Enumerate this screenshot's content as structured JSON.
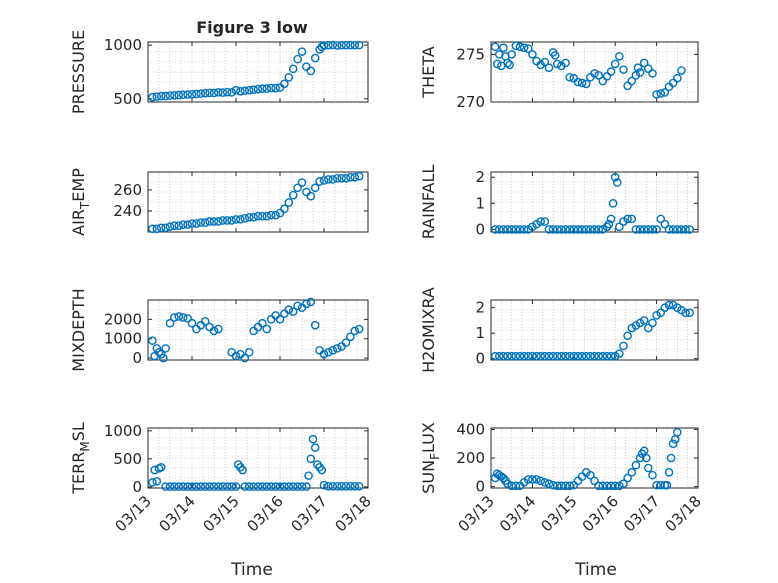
{
  "figure": {
    "title": "Figure 3 low",
    "xlabel_left": "Time",
    "xlabel_right": "Time",
    "x_tick_labels": [
      "03/13",
      "03/14",
      "03/15",
      "03/16",
      "03/17",
      "03/18"
    ]
  },
  "colors": {
    "marker": "#0072BD",
    "axis": "#262626",
    "grid": "#b0b0b0"
  },
  "chart_data": [
    {
      "type": "scatter",
      "title": "Figure 3 low",
      "ylabel": "PRESSURE",
      "xlim": [
        0,
        5
      ],
      "ylim": [
        470,
        1030
      ],
      "yticks": [
        500,
        1000
      ],
      "x": [
        0.1,
        0.2,
        0.3,
        0.4,
        0.5,
        0.6,
        0.7,
        0.8,
        0.9,
        1.0,
        1.1,
        1.2,
        1.3,
        1.4,
        1.5,
        1.6,
        1.7,
        1.8,
        1.9,
        2.0,
        2.1,
        2.2,
        2.3,
        2.4,
        2.5,
        2.6,
        2.7,
        2.8,
        2.9,
        3.0,
        3.1,
        3.2,
        3.3,
        3.4,
        3.5,
        3.6,
        3.7,
        3.8,
        3.9,
        3.95,
        4.0,
        4.1,
        4.2,
        4.3,
        4.4,
        4.5,
        4.6,
        4.7,
        4.8
      ],
      "y": [
        515,
        520,
        525,
        525,
        530,
        532,
        535,
        538,
        540,
        542,
        545,
        548,
        552,
        555,
        555,
        560,
        558,
        562,
        560,
        580,
        570,
        575,
        580,
        585,
        590,
        595,
        595,
        600,
        600,
        605,
        640,
        700,
        780,
        870,
        940,
        800,
        760,
        880,
        960,
        985,
        998,
        1000,
        1002,
        998,
        1000,
        1000,
        1001,
        1000,
        1001
      ]
    },
    {
      "type": "scatter",
      "ylabel": "THETA",
      "xlim": [
        0,
        5
      ],
      "ylim": [
        270,
        276.3
      ],
      "yticks": [
        270,
        275
      ],
      "x": [
        0.1,
        0.15,
        0.2,
        0.25,
        0.3,
        0.35,
        0.4,
        0.45,
        0.5,
        0.6,
        0.7,
        0.8,
        0.9,
        1.0,
        1.1,
        1.2,
        1.3,
        1.4,
        1.5,
        1.55,
        1.6,
        1.7,
        1.8,
        1.9,
        2.0,
        2.1,
        2.2,
        2.3,
        2.4,
        2.5,
        2.6,
        2.7,
        2.8,
        2.9,
        3.0,
        3.1,
        3.2,
        3.3,
        3.4,
        3.5,
        3.55,
        3.6,
        3.7,
        3.8,
        3.9,
        4.0,
        4.1,
        4.2,
        4.3,
        4.4,
        4.5,
        4.6
      ],
      "y": [
        275.8,
        274.0,
        275.0,
        273.8,
        275.7,
        274.8,
        274.1,
        273.9,
        275.0,
        275.9,
        275.8,
        275.7,
        275.6,
        275.0,
        274.3,
        273.9,
        274.2,
        273.6,
        275.2,
        274.9,
        274.0,
        273.8,
        274.1,
        272.6,
        272.5,
        272.1,
        272.0,
        271.9,
        272.6,
        273.0,
        272.8,
        272.2,
        272.7,
        273.2,
        274.0,
        274.8,
        273.4,
        271.7,
        272.2,
        272.8,
        273.6,
        273.1,
        274.1,
        273.5,
        273.0,
        270.8,
        270.9,
        271.0,
        271.6,
        272.0,
        272.5,
        273.3
      ]
    },
    {
      "type": "scatter",
      "ylabel": "AIR_TEMP",
      "xlim": [
        0,
        5
      ],
      "ylim": [
        220,
        277
      ],
      "yticks": [
        240,
        260
      ],
      "x": [
        0.1,
        0.2,
        0.3,
        0.4,
        0.5,
        0.6,
        0.7,
        0.8,
        0.9,
        1.0,
        1.1,
        1.2,
        1.3,
        1.4,
        1.5,
        1.6,
        1.7,
        1.8,
        1.9,
        2.0,
        2.1,
        2.2,
        2.3,
        2.4,
        2.5,
        2.6,
        2.7,
        2.8,
        2.9,
        3.0,
        3.1,
        3.2,
        3.3,
        3.4,
        3.5,
        3.6,
        3.7,
        3.8,
        3.9,
        4.0,
        4.1,
        4.2,
        4.3,
        4.4,
        4.5,
        4.6,
        4.7,
        4.8
      ],
      "y": [
        223,
        223,
        224,
        224,
        225,
        226,
        226,
        227,
        227,
        228,
        228,
        229,
        229,
        230,
        230,
        230,
        231,
        231,
        231,
        232,
        232,
        233,
        234,
        234,
        235,
        235,
        235,
        236,
        236,
        238,
        242,
        248,
        255,
        262,
        267,
        258,
        254,
        262,
        268,
        269,
        270,
        270,
        271,
        271,
        271,
        272,
        272,
        273
      ]
    },
    {
      "type": "scatter",
      "ylabel": "RAINFALL",
      "xlim": [
        0,
        5
      ],
      "ylim": [
        -0.1,
        2.2
      ],
      "yticks": [
        0,
        1,
        2
      ],
      "x": [
        0.1,
        0.2,
        0.3,
        0.4,
        0.5,
        0.6,
        0.7,
        0.8,
        0.9,
        1.0,
        1.1,
        1.2,
        1.3,
        1.4,
        1.5,
        1.6,
        1.7,
        1.8,
        1.9,
        2.0,
        2.1,
        2.2,
        2.3,
        2.4,
        2.5,
        2.6,
        2.7,
        2.8,
        2.85,
        2.9,
        2.95,
        3.0,
        3.05,
        3.1,
        3.2,
        3.3,
        3.4,
        3.5,
        3.6,
        3.7,
        3.8,
        3.9,
        4.0,
        4.1,
        4.2,
        4.3,
        4.4,
        4.5,
        4.6,
        4.7,
        4.8
      ],
      "y": [
        0,
        0,
        0,
        0,
        0,
        0,
        0,
        0,
        0,
        0.1,
        0.2,
        0.3,
        0.3,
        0,
        0,
        0,
        0,
        0,
        0,
        0,
        0,
        0,
        0,
        0,
        0,
        0,
        0,
        0.1,
        0.2,
        0.4,
        1.0,
        2.0,
        1.8,
        0.1,
        0.3,
        0.4,
        0.4,
        0,
        0,
        0,
        0,
        0,
        0,
        0.4,
        0.2,
        0,
        0,
        0,
        0,
        0,
        0
      ]
    },
    {
      "type": "scatter",
      "ylabel": "MIXDEPTH",
      "xlim": [
        0,
        5
      ],
      "ylim": [
        -100,
        3000
      ],
      "yticks": [
        0,
        1000,
        2000
      ],
      "x": [
        0.1,
        0.15,
        0.2,
        0.25,
        0.3,
        0.35,
        0.4,
        0.5,
        0.6,
        0.7,
        0.8,
        0.9,
        1.0,
        1.1,
        1.2,
        1.3,
        1.4,
        1.5,
        1.6,
        1.9,
        2.0,
        2.1,
        2.2,
        2.3,
        2.4,
        2.5,
        2.6,
        2.7,
        2.8,
        2.9,
        3.0,
        3.1,
        3.2,
        3.3,
        3.4,
        3.5,
        3.6,
        3.7,
        3.8,
        3.9,
        4.0,
        4.1,
        4.2,
        4.3,
        4.4,
        4.5,
        4.6,
        4.7,
        4.8
      ],
      "y": [
        900,
        100,
        500,
        300,
        200,
        0,
        500,
        1800,
        2100,
        2150,
        2100,
        2050,
        1800,
        1500,
        1700,
        1900,
        1600,
        1400,
        1500,
        300,
        100,
        200,
        0,
        300,
        1400,
        1600,
        1800,
        1500,
        2000,
        2200,
        2000,
        2300,
        2500,
        2400,
        2700,
        2600,
        2800,
        2900,
        1700,
        400,
        200,
        300,
        400,
        500,
        600,
        800,
        1100,
        1400,
        1500
      ]
    },
    {
      "type": "scatter",
      "ylabel": "H2OMIXRA",
      "xlim": [
        0,
        5
      ],
      "ylim": [
        -0.05,
        2.3
      ],
      "yticks": [
        0,
        1,
        2
      ],
      "x": [
        0.1,
        0.2,
        0.3,
        0.4,
        0.5,
        0.6,
        0.7,
        0.8,
        0.9,
        1.0,
        1.1,
        1.2,
        1.3,
        1.4,
        1.5,
        1.6,
        1.7,
        1.8,
        1.9,
        2.0,
        2.1,
        2.2,
        2.3,
        2.4,
        2.5,
        2.6,
        2.7,
        2.8,
        2.9,
        3.0,
        3.1,
        3.2,
        3.3,
        3.4,
        3.5,
        3.6,
        3.7,
        3.8,
        3.9,
        4.0,
        4.1,
        4.2,
        4.3,
        4.4,
        4.5,
        4.6,
        4.7,
        4.8
      ],
      "y": [
        0.1,
        0.1,
        0.1,
        0.1,
        0.1,
        0.1,
        0.1,
        0.1,
        0.1,
        0.1,
        0.1,
        0.1,
        0.1,
        0.1,
        0.1,
        0.1,
        0.1,
        0.1,
        0.1,
        0.1,
        0.1,
        0.1,
        0.1,
        0.1,
        0.1,
        0.1,
        0.1,
        0.1,
        0.1,
        0.1,
        0.2,
        0.5,
        0.9,
        1.2,
        1.3,
        1.4,
        1.5,
        1.2,
        1.4,
        1.7,
        1.8,
        2.0,
        2.1,
        2.1,
        2.0,
        1.9,
        1.8,
        1.8
      ]
    },
    {
      "type": "scatter",
      "ylabel": "TERR_MSL",
      "xlim": [
        0,
        5
      ],
      "ylim": [
        -20,
        1050
      ],
      "yticks": [
        0,
        500,
        1000
      ],
      "x": [
        0.1,
        0.15,
        0.2,
        0.25,
        0.3,
        0.4,
        0.5,
        0.6,
        0.7,
        0.8,
        0.9,
        1.0,
        1.1,
        1.2,
        1.3,
        1.4,
        1.5,
        1.6,
        1.7,
        1.8,
        1.9,
        2.0,
        2.05,
        2.1,
        2.15,
        2.2,
        2.3,
        2.4,
        2.5,
        2.6,
        2.7,
        2.8,
        2.9,
        3.0,
        3.1,
        3.2,
        3.3,
        3.4,
        3.5,
        3.6,
        3.65,
        3.7,
        3.75,
        3.8,
        3.85,
        3.9,
        3.95,
        4.0,
        4.1,
        4.2,
        4.3,
        4.4,
        4.5,
        4.6,
        4.7,
        4.8
      ],
      "y": [
        80,
        300,
        100,
        330,
        350,
        5,
        5,
        5,
        5,
        5,
        5,
        5,
        5,
        5,
        5,
        5,
        5,
        5,
        5,
        5,
        5,
        5,
        400,
        350,
        300,
        5,
        5,
        5,
        5,
        5,
        5,
        5,
        5,
        5,
        5,
        5,
        5,
        5,
        5,
        5,
        200,
        500,
        850,
        700,
        400,
        350,
        300,
        30,
        10,
        10,
        10,
        10,
        10,
        10,
        10,
        10
      ]
    },
    {
      "type": "scatter",
      "ylabel": "SUN_FLUX",
      "xlim": [
        0,
        5
      ],
      "ylim": [
        -10,
        410
      ],
      "yticks": [
        0,
        200,
        400
      ],
      "x": [
        0.1,
        0.15,
        0.2,
        0.25,
        0.3,
        0.35,
        0.4,
        0.5,
        0.6,
        0.7,
        0.8,
        0.9,
        1.0,
        1.1,
        1.2,
        1.3,
        1.4,
        1.5,
        1.6,
        1.7,
        1.8,
        1.9,
        2.0,
        2.1,
        2.2,
        2.3,
        2.4,
        2.5,
        2.6,
        2.7,
        2.8,
        2.9,
        3.0,
        3.1,
        3.2,
        3.3,
        3.4,
        3.5,
        3.6,
        3.65,
        3.7,
        3.75,
        3.8,
        3.9,
        4.0,
        4.1,
        4.2,
        4.25,
        4.3,
        4.35,
        4.4,
        4.45,
        4.5
      ],
      "y": [
        60,
        90,
        80,
        70,
        60,
        40,
        20,
        5,
        5,
        5,
        30,
        50,
        50,
        50,
        40,
        30,
        20,
        10,
        5,
        5,
        5,
        5,
        10,
        40,
        70,
        100,
        80,
        40,
        5,
        5,
        5,
        5,
        5,
        5,
        20,
        60,
        100,
        150,
        200,
        230,
        250,
        200,
        130,
        80,
        10,
        10,
        10,
        10,
        100,
        200,
        300,
        330,
        380
      ]
    }
  ]
}
